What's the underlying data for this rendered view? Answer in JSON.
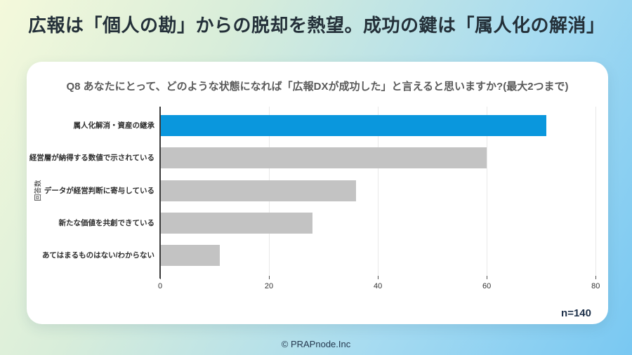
{
  "slide": {
    "title": "広報は「個人の勘」からの脱却を熱望。成功の鍵は「属人化の解消」",
    "sample_size": "n=140",
    "footer": "© PRAPnode.Inc"
  },
  "chart_data": {
    "type": "bar",
    "orientation": "horizontal",
    "title": "Q8 あなたにとって、どのような状態になれば「広報DXが成功した」と言えると思いますか?(最大2つまで)",
    "categories": [
      "属人化解消・資産の継承",
      "経営層が納得する数値で示されている",
      "データが経営判断に寄与している",
      "新たな価値を共創できている",
      "あてはまるものはない/わからない"
    ],
    "values": [
      71,
      60,
      36,
      28,
      11
    ],
    "bar_colors": [
      "#0a97dd",
      "#c3c3c3",
      "#c3c3c3",
      "#c3c3c3",
      "#c3c3c3"
    ],
    "highlight_color": "#0a97dd",
    "default_color": "#c3c3c3",
    "xlabel": "",
    "ylabel": "回答数",
    "xlim": [
      0,
      81
    ],
    "xticks": [
      0,
      20,
      40,
      60,
      80
    ],
    "grid": "vertical-only",
    "legend": "none"
  }
}
